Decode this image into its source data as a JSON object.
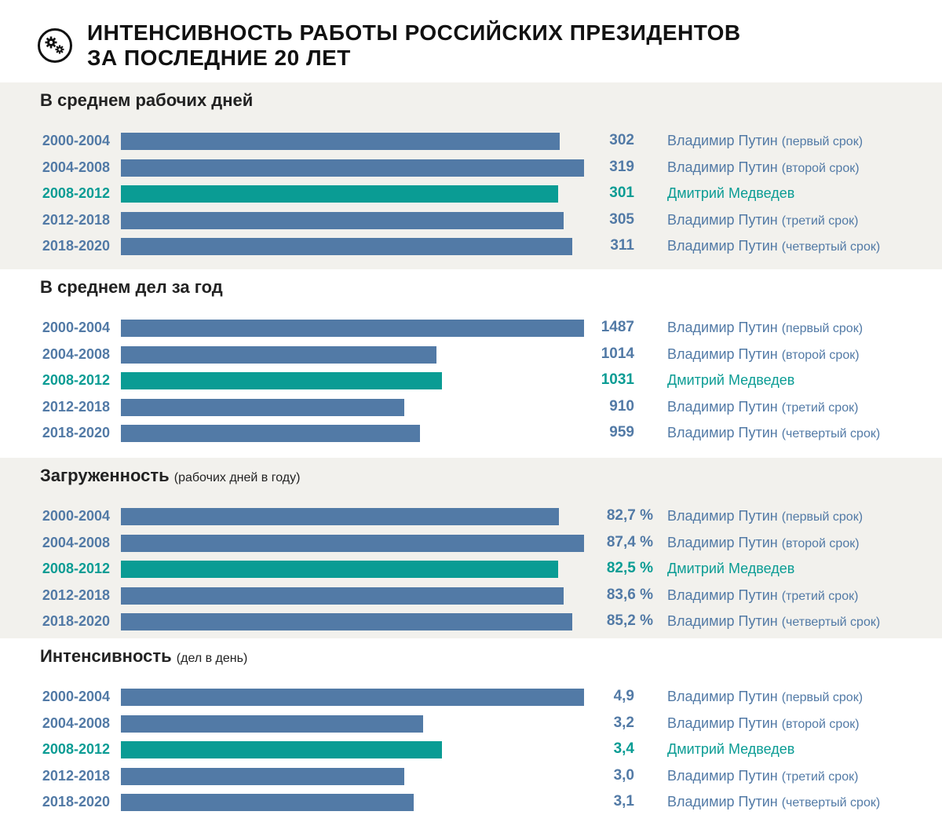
{
  "header": {
    "title_line1": "ИНТЕНСИВНОСТЬ РАБОТЫ РОССИЙСКИХ ПРЕЗИДЕНТОВ",
    "title_line2": "ЗА ПОСЛЕДНИЕ 20 ЛЕТ",
    "icon": "gears-icon"
  },
  "colors": {
    "putin": "#527aa6",
    "medvedev": "#0a9c94",
    "alt_bg": "#f2f1ed"
  },
  "chart_data": [
    {
      "type": "bar",
      "orientation": "horizontal",
      "title": "В среднем рабочих дней",
      "subtitle": "",
      "categories": [
        "2000-2004",
        "2004-2008",
        "2008-2012",
        "2012-2018",
        "2018-2020"
      ],
      "values": [
        302,
        319,
        301,
        305,
        311
      ],
      "labels": [
        "302",
        "319",
        "301",
        "305",
        "311"
      ],
      "names": [
        "Владимир Путин",
        "Владимир Путин",
        "Дмитрий Медведев",
        "Владимир Путин",
        "Владимир Путин"
      ],
      "terms": [
        "(первый срок)",
        "(второй срок)",
        "",
        "(третий срок)",
        "(четвертый срок)"
      ],
      "highlight": [
        false,
        false,
        true,
        false,
        false
      ]
    },
    {
      "type": "bar",
      "orientation": "horizontal",
      "title": "В среднем дел за год",
      "subtitle": "",
      "categories": [
        "2000-2004",
        "2004-2008",
        "2008-2012",
        "2012-2018",
        "2018-2020"
      ],
      "values": [
        1487,
        1014,
        1031,
        910,
        959
      ],
      "labels": [
        "1487",
        "1014",
        "1031",
        "910",
        "959"
      ],
      "names": [
        "Владимир Путин",
        "Владимир Путин",
        "Дмитрий Медведев",
        "Владимир Путин",
        "Владимир Путин"
      ],
      "terms": [
        "(первый срок)",
        "(второй срок)",
        "",
        "(третий срок)",
        "(четвертый срок)"
      ],
      "highlight": [
        false,
        false,
        true,
        false,
        false
      ]
    },
    {
      "type": "bar",
      "orientation": "horizontal",
      "title": "Загруженность",
      "subtitle": "(рабочих дней в году)",
      "categories": [
        "2000-2004",
        "2004-2008",
        "2008-2012",
        "2012-2018",
        "2018-2020"
      ],
      "values": [
        82.7,
        87.4,
        82.5,
        83.6,
        85.2
      ],
      "labels": [
        "82,7 %",
        "87,4 %",
        "82,5 %",
        "83,6 %",
        "85,2 %"
      ],
      "names": [
        "Владимир Путин",
        "Владимир Путин",
        "Дмитрий Медведев",
        "Владимир Путин",
        "Владимир Путин"
      ],
      "terms": [
        "(первый срок)",
        "(второй срок)",
        "",
        "(третий срок)",
        "(четвертый срок)"
      ],
      "highlight": [
        false,
        false,
        true,
        false,
        false
      ]
    },
    {
      "type": "bar",
      "orientation": "horizontal",
      "title": "Интенсивность",
      "subtitle": "(дел в день)",
      "categories": [
        "2000-2004",
        "2004-2008",
        "2008-2012",
        "2012-2018",
        "2018-2020"
      ],
      "values": [
        4.9,
        3.2,
        3.4,
        3.0,
        3.1
      ],
      "labels": [
        "4,9",
        "3,2",
        "3,4",
        "3,0",
        "3,1"
      ],
      "names": [
        "Владимир Путин",
        "Владимир Путин",
        "Дмитрий Медведев",
        "Владимир Путин",
        "Владимир Путин"
      ],
      "terms": [
        "(первый срок)",
        "(второй срок)",
        "",
        "(третий срок)",
        "(четвертый срок)"
      ],
      "highlight": [
        false,
        false,
        true,
        false,
        false
      ]
    }
  ]
}
